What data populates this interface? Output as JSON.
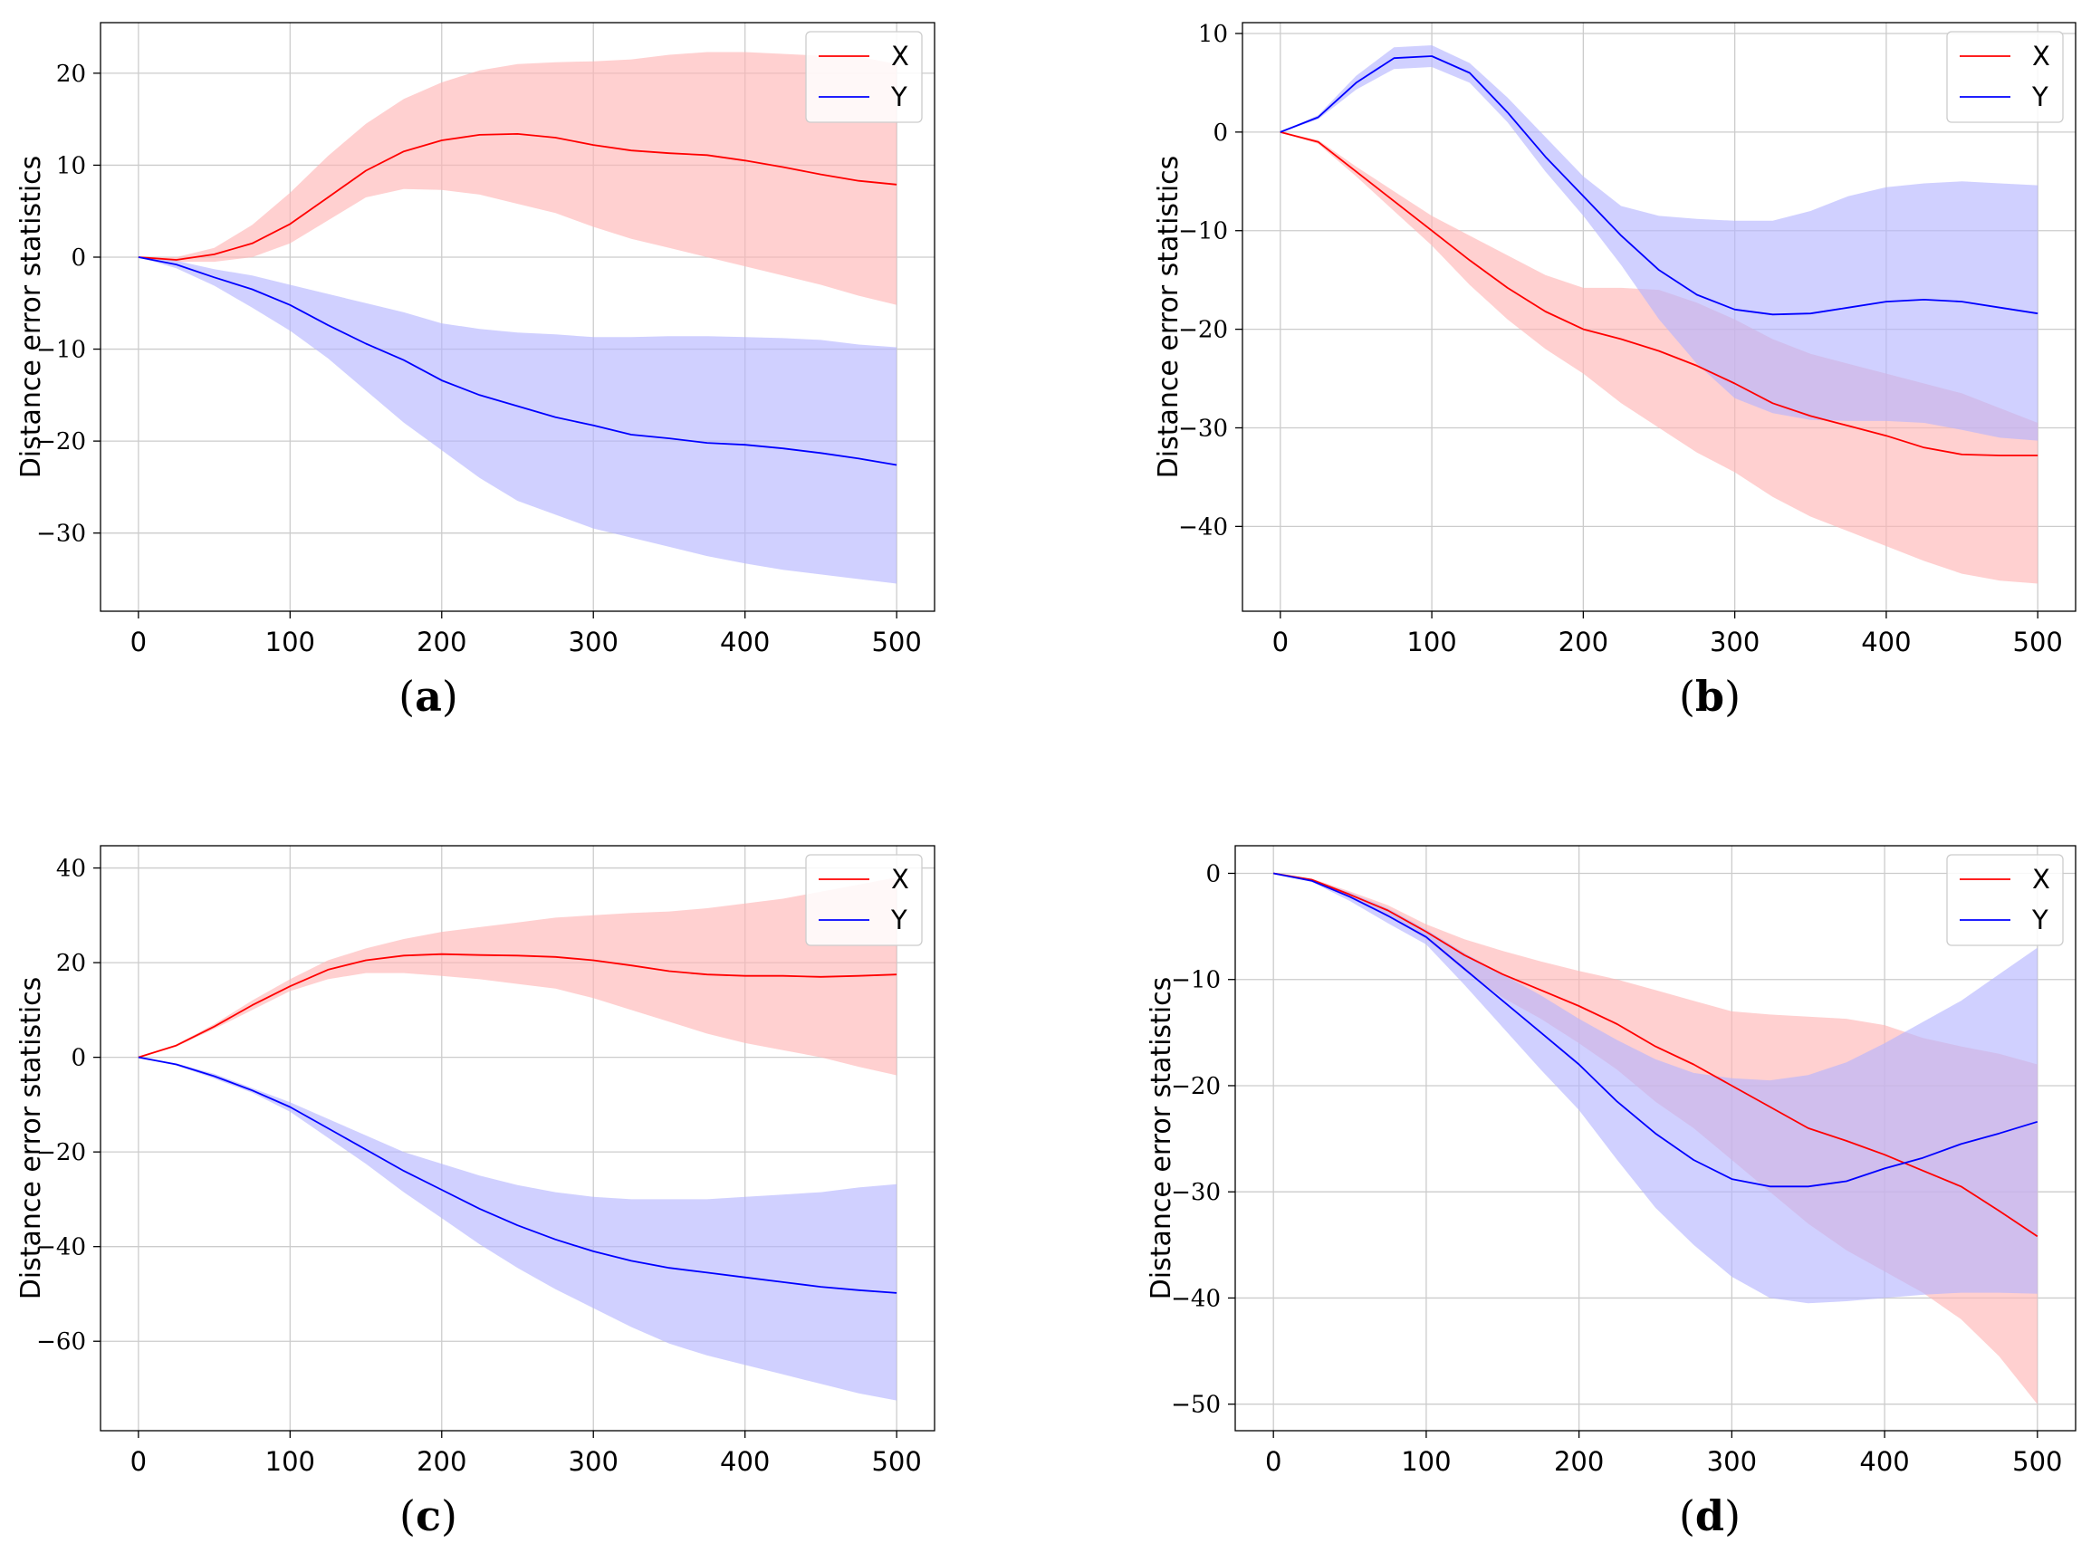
{
  "chart_data": [
    {
      "id": "a",
      "type": "line",
      "caption_open": "(",
      "caption_letter": "a",
      "caption_close": ")",
      "ylabel": "Distance error statistics",
      "xlabel": "",
      "xlim": [
        -25,
        525
      ],
      "ylim": [
        -38.5,
        25.5
      ],
      "xticks": [
        0,
        100,
        200,
        300,
        400,
        500
      ],
      "yticks": [
        20,
        10,
        0,
        -10,
        -20,
        -30
      ],
      "grid": true,
      "legend_position": "top-right",
      "series": [
        {
          "name": "X",
          "color": "#ff0000",
          "band_color": "#ffb3b3",
          "x": [
            0,
            25,
            50,
            75,
            100,
            125,
            150,
            175,
            200,
            225,
            250,
            275,
            300,
            325,
            350,
            375,
            400,
            425,
            450,
            475,
            500
          ],
          "mean": [
            0,
            -0.3,
            0.3,
            1.5,
            3.6,
            6.5,
            9.4,
            11.5,
            12.7,
            13.3,
            13.4,
            13.0,
            12.2,
            11.6,
            11.3,
            11.1,
            10.5,
            9.8,
            9.0,
            8.3,
            7.9
          ],
          "upper": [
            0,
            0,
            1.0,
            3.5,
            7.0,
            11.0,
            14.5,
            17.2,
            19.0,
            20.3,
            21.0,
            21.2,
            21.3,
            21.5,
            22.0,
            22.3,
            22.3,
            22.1,
            21.9,
            21.8,
            21.0
          ],
          "lower": [
            0,
            -0.5,
            -0.5,
            0,
            1.5,
            4.0,
            6.5,
            7.4,
            7.3,
            6.8,
            5.8,
            4.8,
            3.3,
            2.0,
            1.0,
            0,
            -1.0,
            -2.0,
            -3.0,
            -4.2,
            -5.2
          ]
        },
        {
          "name": "Y",
          "color": "#0000ff",
          "band_color": "#b3b3ff",
          "x": [
            0,
            25,
            50,
            75,
            100,
            125,
            150,
            175,
            200,
            225,
            250,
            275,
            300,
            325,
            350,
            375,
            400,
            425,
            450,
            475,
            500
          ],
          "mean": [
            0,
            -0.8,
            -2.2,
            -3.5,
            -5.2,
            -7.4,
            -9.4,
            -11.2,
            -13.4,
            -15.0,
            -16.2,
            -17.4,
            -18.3,
            -19.3,
            -19.7,
            -20.2,
            -20.4,
            -20.8,
            -21.3,
            -21.9,
            -22.6
          ],
          "upper": [
            0,
            -0.4,
            -1.3,
            -2.0,
            -3.0,
            -4.0,
            -5.0,
            -6.0,
            -7.2,
            -7.8,
            -8.2,
            -8.4,
            -8.7,
            -8.7,
            -8.6,
            -8.6,
            -8.7,
            -8.8,
            -9.0,
            -9.5,
            -9.8
          ],
          "lower": [
            0,
            -1.2,
            -3.1,
            -5.5,
            -8.0,
            -11.0,
            -14.5,
            -18.0,
            -21.0,
            -24.0,
            -26.5,
            -28.0,
            -29.5,
            -30.5,
            -31.5,
            -32.5,
            -33.3,
            -34.0,
            -34.5,
            -35.0,
            -35.5
          ]
        }
      ]
    },
    {
      "id": "b",
      "type": "line",
      "caption_open": "(",
      "caption_letter": "b",
      "caption_close": ")",
      "ylabel": "Distance error statistics",
      "xlabel": "",
      "xlim": [
        -25,
        525
      ],
      "ylim": [
        -48.6,
        11.1
      ],
      "xticks": [
        0,
        100,
        200,
        300,
        400,
        500
      ],
      "yticks": [
        10,
        0,
        -10,
        -20,
        -30,
        -40
      ],
      "grid": true,
      "legend_position": "top-right",
      "series": [
        {
          "name": "X",
          "color": "#ff0000",
          "band_color": "#ffb3b3",
          "x": [
            0,
            25,
            50,
            75,
            100,
            125,
            150,
            175,
            200,
            225,
            250,
            275,
            300,
            325,
            350,
            375,
            400,
            425,
            450,
            475,
            500
          ],
          "mean": [
            0,
            -1.0,
            -4.0,
            -7.0,
            -10.0,
            -13.0,
            -15.8,
            -18.2,
            -20.0,
            -21.0,
            -22.2,
            -23.7,
            -25.5,
            -27.5,
            -28.8,
            -29.8,
            -30.8,
            -32.0,
            -32.7,
            -32.8,
            -32.8
          ],
          "upper": [
            0,
            -0.8,
            -3.5,
            -6.0,
            -8.5,
            -10.5,
            -12.5,
            -14.5,
            -15.8,
            -15.8,
            -16.0,
            -17.3,
            -19.0,
            -21.0,
            -22.5,
            -23.5,
            -24.5,
            -25.5,
            -26.5,
            -28.0,
            -29.5
          ],
          "lower": [
            0,
            -1.2,
            -4.5,
            -8.0,
            -11.5,
            -15.5,
            -19.0,
            -22.0,
            -24.5,
            -27.5,
            -30.0,
            -32.5,
            -34.5,
            -37.0,
            -39.0,
            -40.5,
            -42.0,
            -43.5,
            -44.8,
            -45.5,
            -45.8
          ]
        },
        {
          "name": "Y",
          "color": "#0000ff",
          "band_color": "#b3b3ff",
          "x": [
            0,
            25,
            50,
            75,
            100,
            125,
            150,
            175,
            200,
            225,
            250,
            275,
            300,
            325,
            350,
            375,
            400,
            425,
            450,
            475,
            500
          ],
          "mean": [
            0,
            1.5,
            5.0,
            7.5,
            7.7,
            6.0,
            2.0,
            -2.5,
            -6.5,
            -10.5,
            -14.0,
            -16.5,
            -18.0,
            -18.5,
            -18.4,
            -17.8,
            -17.2,
            -17.0,
            -17.2,
            -17.8,
            -18.4
          ],
          "upper": [
            0,
            1.7,
            5.7,
            8.6,
            8.8,
            7.0,
            3.5,
            -0.5,
            -4.5,
            -7.5,
            -8.5,
            -8.8,
            -9.0,
            -9.0,
            -8.0,
            -6.5,
            -5.6,
            -5.2,
            -5.0,
            -5.2,
            -5.4
          ],
          "lower": [
            0,
            1.3,
            4.3,
            6.4,
            6.6,
            5.0,
            1.0,
            -4.0,
            -8.5,
            -13.5,
            -19.0,
            -23.5,
            -27.0,
            -28.5,
            -29.2,
            -29.3,
            -29.3,
            -29.5,
            -30.2,
            -31.0,
            -31.3
          ]
        }
      ]
    },
    {
      "id": "c",
      "type": "line",
      "caption_open": "(",
      "caption_letter": "c",
      "caption_close": ")",
      "ylabel": "Distance error statistics",
      "xlabel": "",
      "xlim": [
        -25,
        525
      ],
      "ylim": [
        -78.9,
        44.7
      ],
      "xticks": [
        0,
        100,
        200,
        300,
        400,
        500
      ],
      "yticks": [
        40,
        20,
        0,
        -20,
        -40,
        -60
      ],
      "grid": true,
      "legend_position": "top-right",
      "series": [
        {
          "name": "X",
          "color": "#ff0000",
          "band_color": "#ffb3b3",
          "x": [
            0,
            25,
            50,
            75,
            100,
            125,
            150,
            175,
            200,
            225,
            250,
            275,
            300,
            325,
            350,
            375,
            400,
            425,
            450,
            475,
            500
          ],
          "mean": [
            0,
            2.5,
            6.5,
            11.0,
            15.0,
            18.5,
            20.5,
            21.5,
            21.8,
            21.6,
            21.5,
            21.2,
            20.5,
            19.4,
            18.2,
            17.5,
            17.2,
            17.2,
            17.0,
            17.2,
            17.5
          ],
          "upper": [
            0,
            2.7,
            7.0,
            12.0,
            16.5,
            20.5,
            23.0,
            25.0,
            26.5,
            27.5,
            28.5,
            29.5,
            30.0,
            30.5,
            30.8,
            31.5,
            32.5,
            33.5,
            35.0,
            36.5,
            38.0
          ],
          "lower": [
            0,
            2.3,
            6.0,
            10.0,
            14.0,
            16.5,
            17.8,
            17.8,
            17.2,
            16.5,
            15.5,
            14.5,
            12.5,
            10.0,
            7.5,
            5.0,
            3.0,
            1.5,
            0,
            -2.0,
            -3.8
          ]
        },
        {
          "name": "Y",
          "color": "#0000ff",
          "band_color": "#b3b3ff",
          "x": [
            0,
            25,
            50,
            75,
            100,
            125,
            150,
            175,
            200,
            225,
            250,
            275,
            300,
            325,
            350,
            375,
            400,
            425,
            450,
            475,
            500
          ],
          "mean": [
            0,
            -1.5,
            -4.0,
            -7.0,
            -10.5,
            -15.0,
            -19.5,
            -24.0,
            -28.0,
            -32.0,
            -35.5,
            -38.5,
            -41.0,
            -43.0,
            -44.5,
            -45.5,
            -46.5,
            -47.5,
            -48.5,
            -49.2,
            -49.8
          ],
          "upper": [
            0,
            -1.3,
            -3.5,
            -6.5,
            -9.5,
            -13.0,
            -16.5,
            -20.0,
            -22.5,
            -25.0,
            -27.0,
            -28.5,
            -29.5,
            -30.0,
            -30.0,
            -30.0,
            -29.5,
            -29.0,
            -28.5,
            -27.5,
            -26.8
          ],
          "lower": [
            0,
            -1.7,
            -4.5,
            -7.5,
            -11.5,
            -17.0,
            -22.5,
            -28.5,
            -34.0,
            -39.5,
            -44.5,
            -49.0,
            -53.0,
            -57.0,
            -60.5,
            -63.0,
            -65.0,
            -67.0,
            -69.0,
            -71.0,
            -72.5
          ]
        }
      ]
    },
    {
      "id": "d",
      "type": "line",
      "caption_open": "(",
      "caption_letter": "d",
      "caption_close": ")",
      "ylabel": "Distance error statistics",
      "xlabel": "",
      "xlim": [
        -25,
        525
      ],
      "ylim": [
        -52.5,
        2.6
      ],
      "xticks": [
        0,
        100,
        200,
        300,
        400,
        500
      ],
      "yticks": [
        0,
        -10,
        -20,
        -30,
        -40,
        -50
      ],
      "grid": true,
      "legend_position": "top-right",
      "series": [
        {
          "name": "X",
          "color": "#ff0000",
          "band_color": "#ffb3b3",
          "x": [
            0,
            25,
            50,
            75,
            100,
            125,
            150,
            175,
            200,
            225,
            250,
            275,
            300,
            325,
            350,
            375,
            400,
            425,
            450,
            475,
            500
          ],
          "mean": [
            0,
            -0.6,
            -2.0,
            -3.5,
            -5.5,
            -7.7,
            -9.5,
            -11.0,
            -12.5,
            -14.2,
            -16.3,
            -18.0,
            -20.0,
            -22.0,
            -24.0,
            -25.2,
            -26.5,
            -28.0,
            -29.5,
            -31.8,
            -34.2
          ],
          "upper": [
            0,
            -0.5,
            -1.7,
            -3.0,
            -4.8,
            -6.2,
            -7.3,
            -8.3,
            -9.2,
            -10.0,
            -11.0,
            -12.0,
            -13.0,
            -13.3,
            -13.5,
            -13.7,
            -14.3,
            -15.5,
            -16.3,
            -17.0,
            -18.0
          ],
          "lower": [
            0,
            -0.7,
            -2.3,
            -4.0,
            -6.2,
            -9.2,
            -11.7,
            -13.7,
            -16.0,
            -18.5,
            -21.5,
            -24.0,
            -27.0,
            -30.0,
            -33.0,
            -35.5,
            -37.5,
            -39.5,
            -42.0,
            -45.5,
            -50.0
          ]
        },
        {
          "name": "Y",
          "color": "#0000ff",
          "band_color": "#b3b3ff",
          "x": [
            0,
            25,
            50,
            75,
            100,
            125,
            150,
            175,
            200,
            225,
            250,
            275,
            300,
            325,
            350,
            375,
            400,
            425,
            450,
            475,
            500
          ],
          "mean": [
            0,
            -0.7,
            -2.2,
            -4.0,
            -6.0,
            -9.0,
            -12.0,
            -15.0,
            -18.0,
            -21.5,
            -24.5,
            -27.0,
            -28.8,
            -29.5,
            -29.5,
            -29.0,
            -27.8,
            -26.8,
            -25.5,
            -24.5,
            -23.4
          ],
          "upper": [
            0,
            -0.6,
            -1.8,
            -3.3,
            -5.3,
            -7.5,
            -9.5,
            -11.5,
            -13.7,
            -15.7,
            -17.5,
            -18.8,
            -19.3,
            -19.5,
            -19.0,
            -17.8,
            -16.0,
            -14.0,
            -12.0,
            -9.5,
            -7.0
          ],
          "lower": [
            0,
            -0.8,
            -2.6,
            -4.7,
            -6.7,
            -10.5,
            -14.5,
            -18.5,
            -22.3,
            -27.0,
            -31.5,
            -35.0,
            -38.0,
            -40.0,
            -40.5,
            -40.3,
            -40.0,
            -39.7,
            -39.5,
            -39.5,
            -39.6
          ]
        }
      ]
    }
  ]
}
